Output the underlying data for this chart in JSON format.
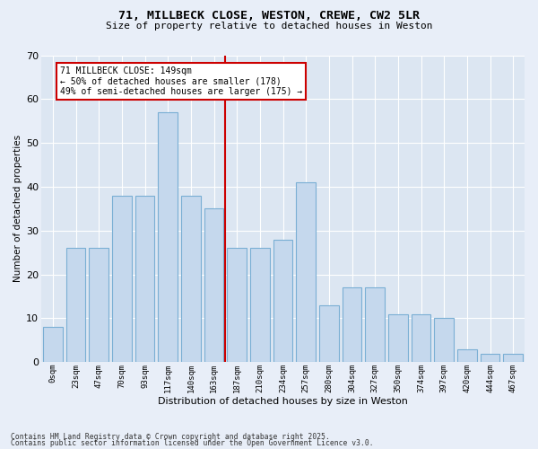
{
  "title1": "71, MILLBECK CLOSE, WESTON, CREWE, CW2 5LR",
  "title2": "Size of property relative to detached houses in Weston",
  "xlabel": "Distribution of detached houses by size in Weston",
  "ylabel": "Number of detached properties",
  "categories": [
    "0sqm",
    "23sqm",
    "47sqm",
    "70sqm",
    "93sqm",
    "117sqm",
    "140sqm",
    "163sqm",
    "187sqm",
    "210sqm",
    "234sqm",
    "257sqm",
    "280sqm",
    "304sqm",
    "327sqm",
    "350sqm",
    "374sqm",
    "397sqm",
    "420sqm",
    "444sqm",
    "467sqm"
  ],
  "values": [
    8,
    26,
    26,
    38,
    38,
    57,
    38,
    35,
    26,
    26,
    28,
    41,
    13,
    17,
    17,
    11,
    11,
    10,
    3,
    2,
    2
  ],
  "bar_color": "#c5d8ed",
  "bar_edge_color": "#7aafd4",
  "vline_color": "#cc0000",
  "vline_bar_index": 7,
  "annotation_text": "71 MILLBECK CLOSE: 149sqm\n← 50% of detached houses are smaller (178)\n49% of semi-detached houses are larger (175) →",
  "annotation_box_color": "white",
  "annotation_box_edge": "#cc0000",
  "ylim": [
    0,
    70
  ],
  "yticks": [
    0,
    10,
    20,
    30,
    40,
    50,
    60,
    70
  ],
  "footer1": "Contains HM Land Registry data © Crown copyright and database right 2025.",
  "footer2": "Contains public sector information licensed under the Open Government Licence v3.0.",
  "bg_color": "#e8eef8",
  "plot_bg_color": "#dce6f2"
}
